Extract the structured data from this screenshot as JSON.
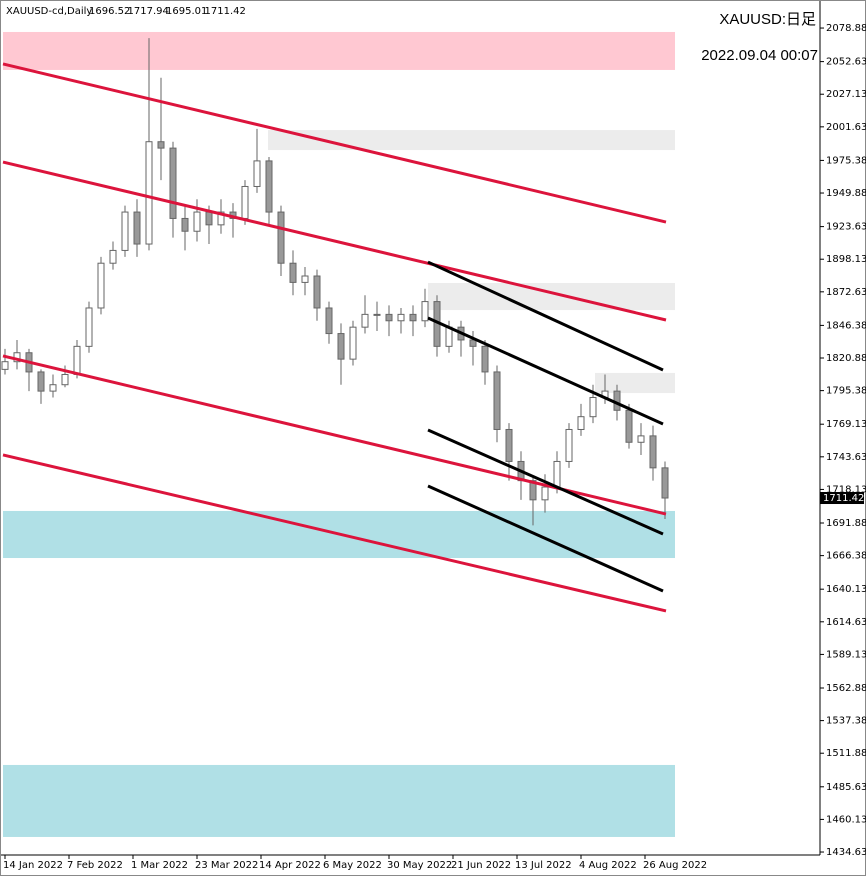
{
  "chart_data": {
    "type": "candlestick",
    "symbol": "XAUUSD-cd,Daily",
    "header_ohlc": [
      1696.52,
      1717.94,
      1695.01,
      1711.42
    ],
    "title": "XAUUSD:日足",
    "timestamp": "2022.09.04 00:07",
    "last_price": 1711.42,
    "xlim": [
      -1.25,
      203.75
    ],
    "xticks": [
      {
        "value": 0,
        "label": "14 Jan 2022"
      },
      {
        "value": 16,
        "label": "7 Feb 2022"
      },
      {
        "value": 32,
        "label": "1 Mar 2022"
      },
      {
        "value": 48,
        "label": "23 Mar 2022"
      },
      {
        "value": 64,
        "label": "14 Apr 2022"
      },
      {
        "value": 80,
        "label": "6 May 2022"
      },
      {
        "value": 96,
        "label": "30 May 2022"
      },
      {
        "value": 112,
        "label": "21 Jun 2022"
      },
      {
        "value": 128,
        "label": "13 Jul 2022"
      },
      {
        "value": 144,
        "label": "4 Aug 2022"
      },
      {
        "value": 160,
        "label": "26 Aug 2022"
      }
    ],
    "ylim": [
      1432.3,
      2100.8
    ],
    "yticks": [
      2078.88,
      2052.63,
      2027.13,
      2001.63,
      1975.38,
      1949.88,
      1923.63,
      1898.13,
      1872.63,
      1846.38,
      1820.88,
      1795.38,
      1769.13,
      1743.63,
      1718.13,
      1691.88,
      1666.38,
      1640.13,
      1614.63,
      1589.13,
      1562.88,
      1537.38,
      1511.88,
      1485.63,
      1460.13,
      1434.63
    ],
    "x": [
      0,
      3,
      6,
      9,
      12,
      15,
      18,
      21,
      24,
      27,
      30,
      33,
      36,
      39,
      42,
      45,
      48,
      51,
      54,
      57,
      60,
      63,
      66,
      69,
      72,
      75,
      78,
      81,
      84,
      87,
      90,
      93,
      96,
      99,
      102,
      105,
      108,
      111,
      114,
      117,
      120,
      123,
      126,
      129,
      132,
      135,
      138,
      141,
      144,
      147,
      150,
      153,
      156,
      159,
      162,
      165
    ],
    "open": [
      1812,
      1818,
      1825,
      1810,
      1795,
      1800,
      1808,
      1830,
      1860,
      1895,
      1905,
      1935,
      1910,
      1990,
      1985,
      1930,
      1920,
      1935,
      1925,
      1935,
      1930,
      1955,
      1975,
      1935,
      1895,
      1880,
      1885,
      1860,
      1840,
      1820,
      1845,
      1855,
      1855,
      1850,
      1855,
      1850,
      1865,
      1830,
      1845,
      1835,
      1830,
      1810,
      1765,
      1740,
      1725,
      1710,
      1720,
      1740,
      1765,
      1775,
      1790,
      1795,
      1780,
      1755,
      1760,
      1735
    ],
    "high": [
      1828,
      1835,
      1828,
      1812,
      1808,
      1815,
      1835,
      1865,
      1900,
      1912,
      1940,
      1945,
      2071,
      2040,
      1990,
      1940,
      1945,
      1940,
      1945,
      1942,
      1960,
      2000,
      1978,
      1940,
      1905,
      1892,
      1890,
      1865,
      1848,
      1850,
      1870,
      1865,
      1862,
      1860,
      1862,
      1875,
      1870,
      1850,
      1850,
      1842,
      1835,
      1815,
      1770,
      1748,
      1728,
      1730,
      1748,
      1770,
      1785,
      1800,
      1808,
      1800,
      1785,
      1770,
      1768,
      1740
    ],
    "low": [
      1808,
      1812,
      1795,
      1785,
      1790,
      1798,
      1805,
      1825,
      1855,
      1890,
      1900,
      1900,
      1905,
      1960,
      1915,
      1905,
      1912,
      1910,
      1918,
      1915,
      1925,
      1950,
      1925,
      1885,
      1870,
      1870,
      1850,
      1832,
      1800,
      1815,
      1840,
      1842,
      1838,
      1840,
      1838,
      1845,
      1822,
      1825,
      1822,
      1815,
      1800,
      1755,
      1725,
      1710,
      1690,
      1700,
      1715,
      1735,
      1760,
      1770,
      1785,
      1772,
      1750,
      1745,
      1725,
      1695
    ],
    "close": [
      1818,
      1825,
      1810,
      1795,
      1800,
      1808,
      1830,
      1860,
      1895,
      1905,
      1935,
      1910,
      1990,
      1985,
      1930,
      1920,
      1935,
      1925,
      1935,
      1930,
      1955,
      1975,
      1935,
      1895,
      1880,
      1885,
      1860,
      1840,
      1820,
      1845,
      1855,
      1855,
      1850,
      1855,
      1850,
      1865,
      1830,
      1845,
      1835,
      1830,
      1810,
      1765,
      1740,
      1725,
      1710,
      1720,
      1740,
      1765,
      1775,
      1790,
      1795,
      1780,
      1755,
      1760,
      1735,
      1711.42
    ],
    "zones": [
      {
        "color": "#ffc8d2",
        "x": [
          -0.5,
          167.5
        ],
        "y": [
          2046.1,
          2075.8
        ]
      },
      {
        "color": "#ececec",
        "x": [
          65.75,
          167.5
        ],
        "y": [
          1983.5,
          1999.1
        ]
      },
      {
        "color": "#ececec",
        "x": [
          105.75,
          167.5
        ],
        "y": [
          1858.4,
          1879.5
        ]
      },
      {
        "color": "#ececec",
        "x": [
          147.5,
          167.5
        ],
        "y": [
          1793.5,
          1809.2
        ]
      },
      {
        "color": "#b0e0e6",
        "x": [
          -0.5,
          167.5
        ],
        "y": [
          1664.5,
          1701.3
        ]
      },
      {
        "color": "#b0e0e6",
        "x": [
          -0.5,
          167.5
        ],
        "y": [
          1446.4,
          1502.7
        ]
      }
    ],
    "lines": [
      {
        "color": "#dc143c",
        "x": [
          -0.5,
          165.25
        ],
        "y": [
          2050.8,
          1927.2
        ]
      },
      {
        "color": "#dc143c",
        "x": [
          -0.5,
          165.25
        ],
        "y": [
          1974.1,
          1850.6
        ]
      },
      {
        "color": "#dc143c",
        "x": [
          -0.5,
          165.25
        ],
        "y": [
          1822.5,
          1698.9
        ]
      },
      {
        "color": "#dc143c",
        "x": [
          -0.5,
          165.25
        ],
        "y": [
          1745.1,
          1623.1
        ]
      },
      {
        "color": "#000000",
        "x": [
          105.75,
          164.5
        ],
        "y": [
          1895.9,
          1811.5
        ]
      },
      {
        "color": "#000000",
        "x": [
          105.75,
          164.5
        ],
        "y": [
          1852.2,
          1769.3
        ]
      },
      {
        "color": "#000000",
        "x": [
          105.75,
          164.5
        ],
        "y": [
          1764.6,
          1683.3
        ]
      },
      {
        "color": "#000000",
        "x": [
          105.75,
          164.5
        ],
        "y": [
          1720.8,
          1638.7
        ]
      }
    ]
  }
}
